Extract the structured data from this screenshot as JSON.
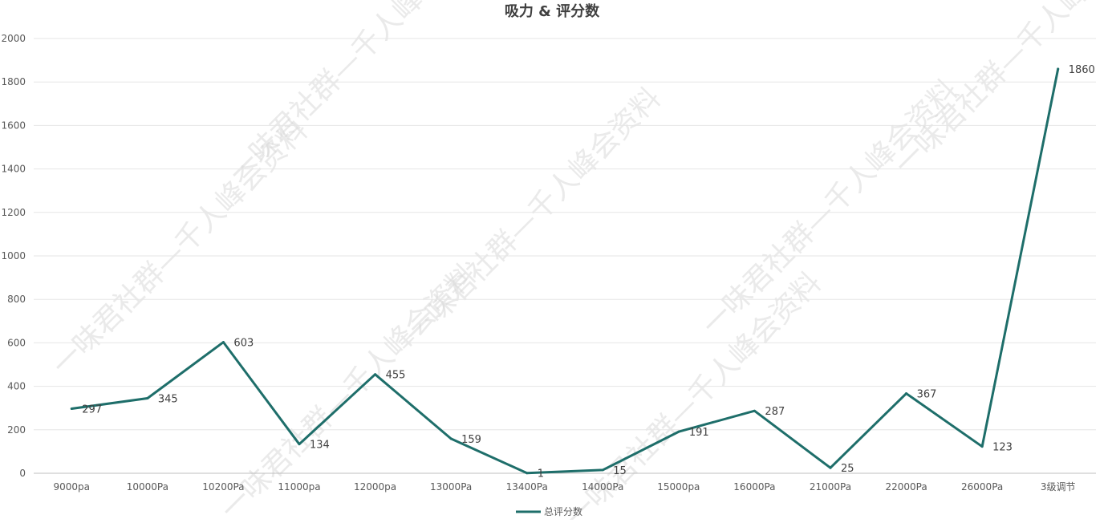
{
  "chart_data": {
    "type": "line",
    "title": "吸力 & 评分数",
    "xlabel": "",
    "ylabel": "",
    "categories": [
      "9000pa",
      "10000Pa",
      "10200Pa",
      "11000pa",
      "12000pa",
      "13000Pa",
      "13400Pa",
      "14000Pa",
      "15000pa",
      "16000Pa",
      "21000Pa",
      "22000Pa",
      "26000Pa",
      "3级调节"
    ],
    "series": [
      {
        "name": "总评分数",
        "values": [
          297,
          345,
          603,
          134,
          455,
          159,
          1,
          15,
          191,
          287,
          25,
          367,
          123,
          1860
        ],
        "color": "#1e6e6a"
      }
    ],
    "ylim": [
      0,
      2000
    ],
    "yticks": [
      0,
      200,
      400,
      600,
      800,
      1000,
      1200,
      1400,
      1600,
      1800,
      2000
    ],
    "grid": true,
    "legend_position": "bottom",
    "data_labels": true
  },
  "watermark": {
    "text": "一味君社群—千人峰会资料"
  }
}
